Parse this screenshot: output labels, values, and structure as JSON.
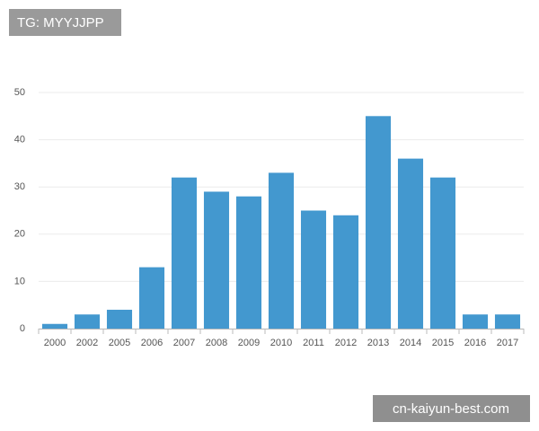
{
  "chart_data": {
    "type": "bar",
    "categories": [
      "2000",
      "2002",
      "2005",
      "2006",
      "2007",
      "2008",
      "2009",
      "2010",
      "2011",
      "2012",
      "2013",
      "2014",
      "2015",
      "2016",
      "2017"
    ],
    "values": [
      1,
      3,
      4,
      13,
      32,
      29,
      28,
      33,
      25,
      24,
      45,
      36,
      32,
      3,
      3
    ],
    "color": "#4398cf",
    "ylim": [
      0,
      50
    ],
    "yticks": [
      0,
      10,
      20,
      30,
      40,
      50
    ],
    "grid": true,
    "annotations": [
      "TG: MYYJJPP",
      "cn-kaiyun-best.com"
    ]
  }
}
